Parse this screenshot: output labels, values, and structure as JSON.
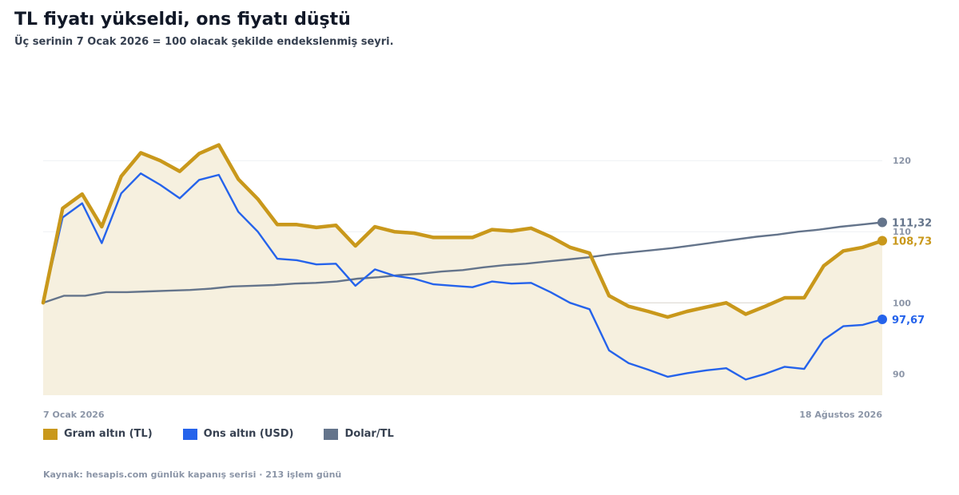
{
  "header": {
    "title": "TL fiyatı yükseldi, ons fiyatı düştü",
    "subtitle": "Üç serinin 7 Ocak 2026 = 100 olacak şekilde endekslenmiş seyri."
  },
  "source": "Kaynak: hesapis.com günlük kapanış serisi · 213 işlem günü",
  "chart_data": {
    "type": "line",
    "x_labels": [
      "7 Ocak 2026",
      "18 Ağustos 2026"
    ],
    "y_ticks": [
      "90",
      "100",
      "110",
      "120"
    ],
    "ylim": [
      87,
      128
    ],
    "grid": true,
    "legend": "bottom-left",
    "series": [
      {
        "name": "Gram altın (TL)",
        "color": "#C9981B",
        "end_label": "108,73",
        "area_fill": "#F6F0DF",
        "values": [
          100,
          113.3,
          115.3,
          110.7,
          117.8,
          121.1,
          120.0,
          118.5,
          121.0,
          122.2,
          117.4,
          114.6,
          111.0,
          111.0,
          110.6,
          110.9,
          108.0,
          110.7,
          110.0,
          109.8,
          109.2,
          109.2,
          109.2,
          110.3,
          110.1,
          110.5,
          109.3,
          107.8,
          107.0,
          101.0,
          99.5,
          98.8,
          98.0,
          98.8,
          99.4,
          100.0,
          98.4,
          99.5,
          100.7,
          100.7,
          105.2,
          107.3,
          107.8,
          108.73
        ]
      },
      {
        "name": "Ons altın (USD)",
        "color": "#2563EB",
        "end_label": "97,67",
        "values": [
          100,
          112.0,
          114.0,
          108.4,
          115.4,
          118.2,
          116.6,
          114.7,
          117.3,
          118.0,
          112.8,
          110.0,
          106.2,
          106.0,
          105.4,
          105.5,
          102.4,
          104.7,
          103.8,
          103.4,
          102.6,
          102.4,
          102.2,
          103.0,
          102.7,
          102.8,
          101.5,
          100.0,
          99.1,
          93.3,
          91.5,
          90.6,
          89.6,
          90.1,
          90.5,
          90.8,
          89.2,
          90.0,
          91.0,
          90.7,
          94.8,
          96.7,
          96.9,
          97.67
        ]
      },
      {
        "name": "Dolar/TL",
        "color": "#64748B",
        "end_label": "111,32",
        "values": [
          100,
          101.0,
          101.0,
          101.5,
          101.5,
          101.6,
          101.7,
          101.8,
          102.0,
          102.3,
          102.4,
          102.5,
          102.7,
          102.8,
          103.0,
          103.4,
          103.6,
          103.9,
          104.1,
          104.4,
          104.6,
          105.0,
          105.3,
          105.5,
          105.8,
          106.1,
          106.4,
          106.8,
          107.1,
          107.4,
          107.7,
          108.1,
          108.5,
          108.9,
          109.3,
          109.6,
          110.0,
          110.3,
          110.7,
          111.0,
          111.32
        ]
      }
    ]
  }
}
